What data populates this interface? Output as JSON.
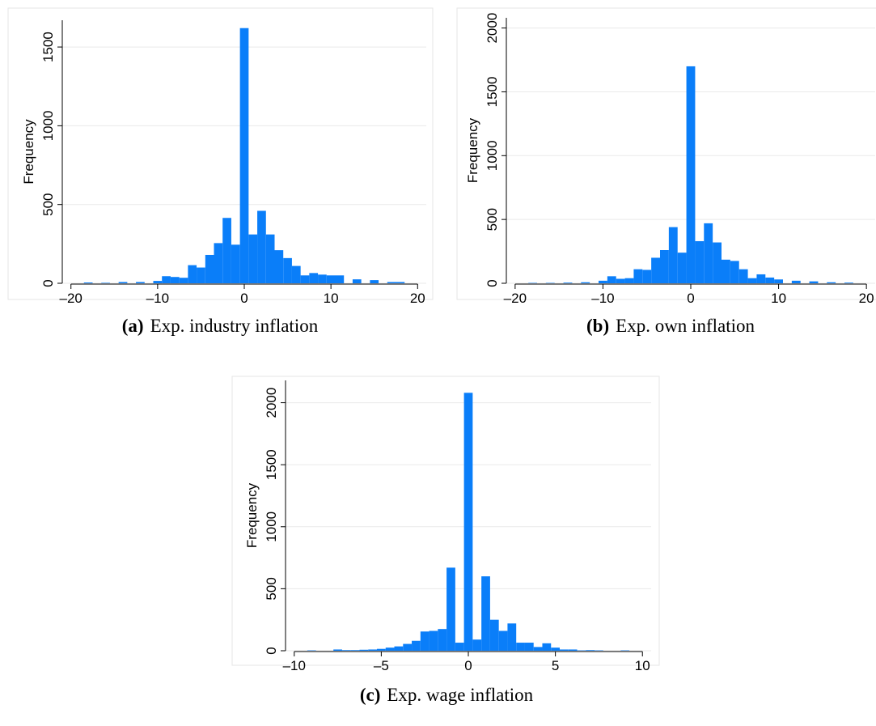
{
  "chart_data": [
    {
      "type": "histogram",
      "ylabel": "Frequency",
      "caption_label": "(a)",
      "caption": "Exp. industry inflation",
      "color": "#0a7ef9",
      "grid": true,
      "bins": [
        -18.5,
        -17.5,
        -16.5,
        -15.5,
        -14.5,
        -13.5,
        -12.5,
        -11.5,
        -10.5,
        -9.5,
        -8.5,
        -7.5,
        -6.5,
        -5.5,
        -4.5,
        -3.5,
        -2.5,
        -1.5,
        -0.5,
        0.5,
        1.5,
        2.5,
        3.5,
        4.5,
        5.5,
        6.5,
        7.5,
        8.5,
        9.5,
        10.5,
        11.5,
        12.5,
        13.5,
        14.5,
        15.5,
        16.5,
        17.5,
        18.5
      ],
      "values": [
        5,
        0,
        3,
        0,
        8,
        0,
        8,
        0,
        15,
        45,
        40,
        35,
        115,
        100,
        180,
        255,
        415,
        245,
        1620,
        310,
        460,
        310,
        210,
        160,
        110,
        50,
        65,
        55,
        50,
        50,
        0,
        25,
        0,
        20,
        0,
        8,
        8
      ],
      "xlim": [
        -21,
        21
      ],
      "ylim": [
        0,
        1670
      ],
      "xticks": [
        {
          "value": -20,
          "label": "–20"
        },
        {
          "value": -10,
          "label": "–10"
        },
        0,
        10,
        20
      ],
      "yticks": [
        0,
        500,
        1000,
        1500
      ]
    },
    {
      "type": "histogram",
      "ylabel": "Frequency",
      "caption_label": "(b)",
      "caption": "Exp. own inflation",
      "color": "#0a7ef9",
      "grid": true,
      "bins": [
        -18.5,
        -17.5,
        -16.5,
        -15.5,
        -14.5,
        -13.5,
        -12.5,
        -11.5,
        -10.5,
        -9.5,
        -8.5,
        -7.5,
        -6.5,
        -5.5,
        -4.5,
        -3.5,
        -2.5,
        -1.5,
        -0.5,
        0.5,
        1.5,
        2.5,
        3.5,
        4.5,
        5.5,
        6.5,
        7.5,
        8.5,
        9.5,
        10.5,
        11.5,
        12.5,
        13.5,
        14.5,
        15.5,
        16.5,
        17.5,
        18.5
      ],
      "values": [
        3,
        0,
        3,
        0,
        5,
        0,
        8,
        0,
        20,
        55,
        35,
        40,
        110,
        105,
        200,
        260,
        440,
        240,
        1700,
        330,
        470,
        320,
        185,
        175,
        110,
        40,
        70,
        45,
        30,
        0,
        20,
        0,
        15,
        0,
        8,
        0,
        5
      ],
      "xlim": [
        -21,
        21
      ],
      "ylim": [
        0,
        2080
      ],
      "xticks": [
        {
          "value": -20,
          "label": "–20"
        },
        {
          "value": -10,
          "label": "–10"
        },
        0,
        10,
        20
      ],
      "yticks": [
        0,
        500,
        1000,
        1500,
        2000
      ]
    },
    {
      "type": "histogram",
      "ylabel": "Frequency",
      "caption_label": "(c)",
      "caption": "Exp. wage inflation",
      "color": "#0a7ef9",
      "grid": true,
      "bins": [
        -9.25,
        -8.75,
        -8.25,
        -7.75,
        -7.25,
        -6.75,
        -6.25,
        -5.75,
        -5.25,
        -4.75,
        -4.25,
        -3.75,
        -3.25,
        -2.75,
        -2.25,
        -1.75,
        -1.25,
        -0.75,
        -0.25,
        0.25,
        0.75,
        1.25,
        1.75,
        2.25,
        2.75,
        3.25,
        3.75,
        4.25,
        4.75,
        5.25,
        5.75,
        6.25,
        6.75,
        7.25,
        7.75,
        8.25,
        8.75,
        9.25
      ],
      "values": [
        3,
        0,
        0,
        10,
        5,
        5,
        8,
        10,
        15,
        25,
        35,
        55,
        80,
        155,
        160,
        175,
        670,
        65,
        2080,
        90,
        600,
        250,
        160,
        220,
        65,
        65,
        30,
        60,
        25,
        10,
        10,
        3,
        5,
        3,
        0,
        0,
        3
      ],
      "xlim": [
        -10.5,
        10.5
      ],
      "ylim": [
        0,
        2180
      ],
      "xticks": [
        {
          "value": -10,
          "label": "–10"
        },
        {
          "value": -5,
          "label": "–5"
        },
        0,
        5,
        10
      ],
      "yticks": [
        0,
        500,
        1000,
        1500,
        2000
      ]
    }
  ]
}
